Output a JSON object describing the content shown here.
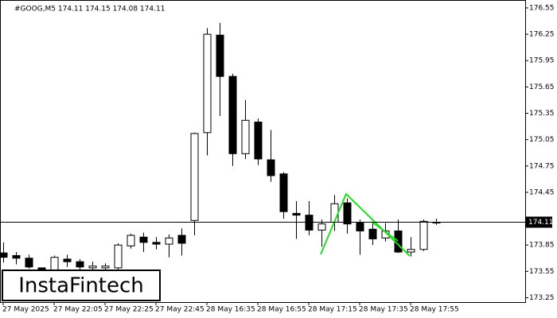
{
  "chart_data": {
    "type": "candlestick",
    "header": "#GOOG,M5  174.11 174.15 174.08 174.11",
    "watermark": "InstaFintech",
    "categories": [
      "27 May 2025",
      null,
      null,
      null,
      "27 May 22:05",
      null,
      null,
      null,
      "27 May 22:25",
      null,
      null,
      null,
      "27 May 22:45",
      null,
      null,
      null,
      "28 May 16:35",
      null,
      null,
      null,
      "28 May 16:55",
      null,
      null,
      null,
      "28 May 17:15",
      null,
      null,
      null,
      "28 May 17:35",
      null,
      null,
      null,
      "28 May 17:55",
      null,
      null
    ],
    "open": [
      173.76,
      173.73,
      173.7,
      173.59,
      173.56,
      173.69,
      173.66,
      173.59,
      173.59,
      173.59,
      173.84,
      173.94,
      173.88,
      173.86,
      173.96,
      174.13,
      175.13,
      176.24,
      175.77,
      174.89,
      175.25,
      174.82,
      174.66,
      174.21,
      174.19,
      174.02,
      174.11,
      174.33,
      174.1,
      174.03,
      173.93,
      174.01,
      173.77,
      173.8,
      174.11
    ],
    "high": [
      173.88,
      173.77,
      173.74,
      173.59,
      173.73,
      173.74,
      173.69,
      173.66,
      173.64,
      173.87,
      173.98,
      173.99,
      173.94,
      173.97,
      174.04,
      175.13,
      176.32,
      176.38,
      175.8,
      175.5,
      175.29,
      175.16,
      174.68,
      174.35,
      174.35,
      174.14,
      174.42,
      174.38,
      174.14,
      174.1,
      174.1,
      174.14,
      173.94,
      174.14,
      174.15
    ],
    "low": [
      173.65,
      173.63,
      173.58,
      173.54,
      173.54,
      173.6,
      173.56,
      173.56,
      173.55,
      173.56,
      173.81,
      173.77,
      173.8,
      173.71,
      173.73,
      173.96,
      174.87,
      175.32,
      174.75,
      174.83,
      174.76,
      174.57,
      174.15,
      173.92,
      173.96,
      173.83,
      174.01,
      173.98,
      173.74,
      173.85,
      173.89,
      173.76,
      173.72,
      173.78,
      174.08
    ],
    "close": [
      173.71,
      173.7,
      173.6,
      173.56,
      173.71,
      173.66,
      173.6,
      173.61,
      173.61,
      173.85,
      173.96,
      173.88,
      173.86,
      173.93,
      173.87,
      175.12,
      176.25,
      175.77,
      174.89,
      175.27,
      174.83,
      174.64,
      174.23,
      174.19,
      174.02,
      174.09,
      174.32,
      174.09,
      174.01,
      173.92,
      174.01,
      173.77,
      173.8,
      174.12,
      174.11
    ],
    "current_price": 174.11,
    "ylim": [
      173.2,
      176.64
    ],
    "yticks": [
      176.55,
      176.25,
      175.95,
      175.65,
      175.35,
      175.05,
      174.75,
      174.45,
      173.85,
      173.55,
      173.25
    ]
  }
}
